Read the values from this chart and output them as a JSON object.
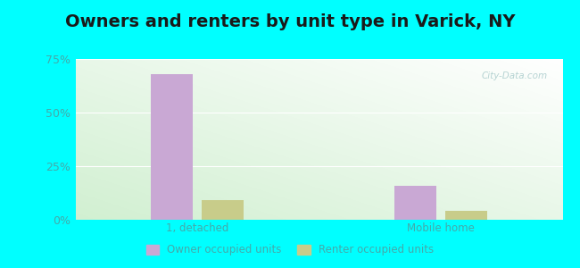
{
  "title": "Owners and renters by unit type in Varick, NY",
  "categories": [
    "1, detached",
    "Mobile home"
  ],
  "owner_values": [
    68.0,
    16.0
  ],
  "renter_values": [
    9.0,
    4.0
  ],
  "owner_color": "#c9a8d4",
  "renter_color": "#c8cc8a",
  "ylim": [
    0,
    75
  ],
  "yticks": [
    0,
    25,
    50,
    75
  ],
  "yticklabels": [
    "0%",
    "25%",
    "50%",
    "75%"
  ],
  "background_outer": "#00ffff",
  "legend_owner": "Owner occupied units",
  "legend_renter": "Renter occupied units",
  "title_fontsize": 14,
  "watermark": "City-Data.com",
  "tick_color": "#44aaaa",
  "grid_color": "#dddddd"
}
